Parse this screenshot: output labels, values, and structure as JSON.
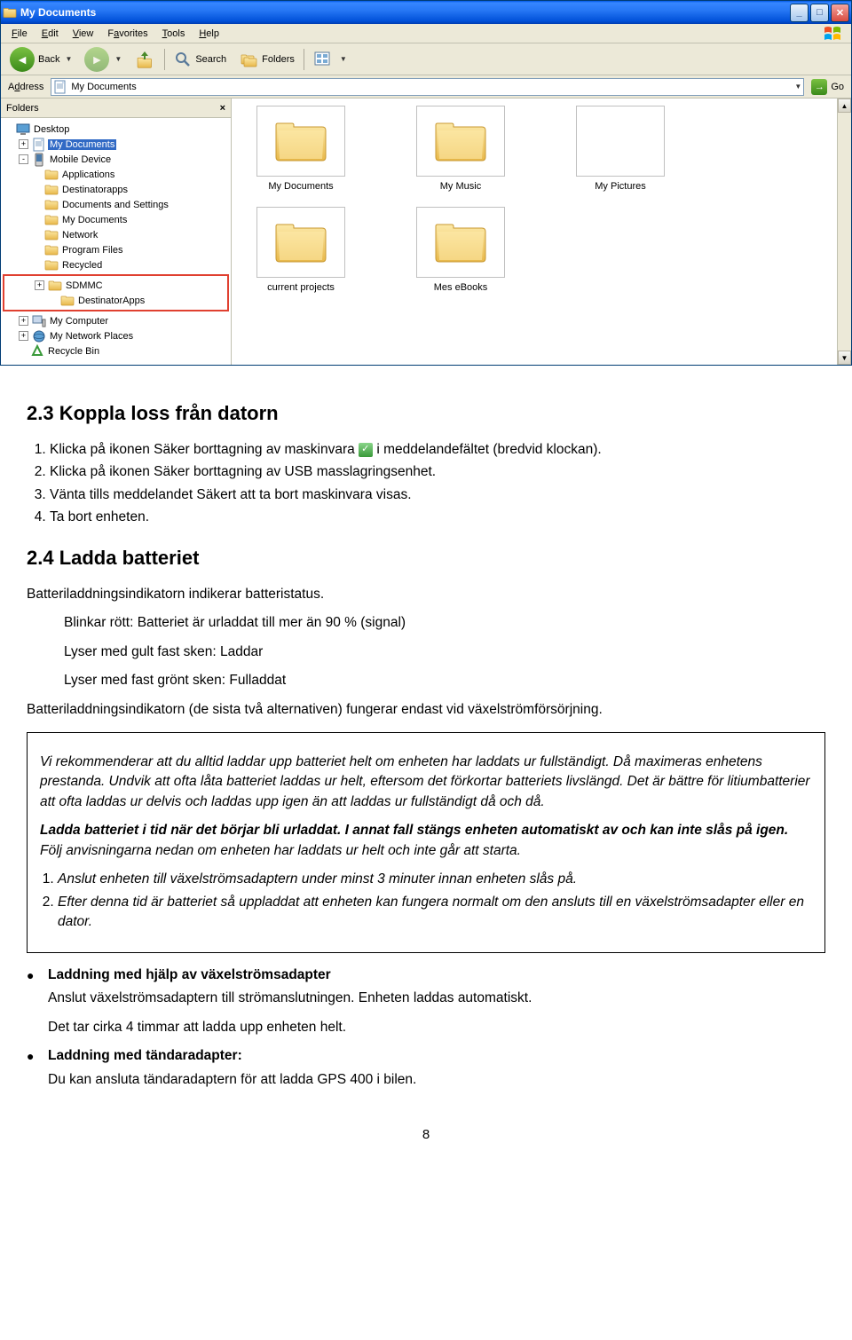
{
  "window": {
    "title": "My Documents",
    "menu": [
      "File",
      "Edit",
      "View",
      "Favorites",
      "Tools",
      "Help"
    ],
    "menu_accel": [
      "F",
      "E",
      "V",
      "a",
      "T",
      "H"
    ],
    "toolbar": {
      "back": "Back",
      "search": "Search",
      "folders": "Folders"
    },
    "address": {
      "label": "Address",
      "value": "My Documents",
      "go": "Go"
    },
    "folders_panel": {
      "header": "Folders",
      "tree": [
        {
          "depth": 0,
          "exp": "",
          "icon": "desktop",
          "label": "Desktop"
        },
        {
          "depth": 1,
          "exp": "+",
          "icon": "mydocs",
          "label": "My Documents",
          "selected": true
        },
        {
          "depth": 1,
          "exp": "-",
          "icon": "device",
          "label": "Mobile Device"
        },
        {
          "depth": 2,
          "exp": "",
          "icon": "folder",
          "label": "Applications"
        },
        {
          "depth": 2,
          "exp": "",
          "icon": "folder",
          "label": "Destinatorapps"
        },
        {
          "depth": 2,
          "exp": "",
          "icon": "folder",
          "label": "Documents and Settings"
        },
        {
          "depth": 2,
          "exp": "",
          "icon": "folder",
          "label": "My Documents"
        },
        {
          "depth": 2,
          "exp": "",
          "icon": "folder",
          "label": "Network"
        },
        {
          "depth": 2,
          "exp": "",
          "icon": "folder",
          "label": "Program Files"
        },
        {
          "depth": 2,
          "exp": "",
          "icon": "folder",
          "label": "Recycled"
        },
        {
          "depth": 2,
          "exp": "+",
          "icon": "folder",
          "label": "SDMMC",
          "hl": true
        },
        {
          "depth": 3,
          "exp": "",
          "icon": "folder",
          "label": "DestinatorApps",
          "hl": true
        },
        {
          "depth": 1,
          "exp": "+",
          "icon": "computer",
          "label": "My Computer"
        },
        {
          "depth": 1,
          "exp": "+",
          "icon": "network",
          "label": "My Network Places"
        },
        {
          "depth": 1,
          "exp": "",
          "icon": "recycle",
          "label": "Recycle Bin"
        }
      ]
    },
    "content_items": [
      {
        "name": "My Documents",
        "type": "folder"
      },
      {
        "name": "My Music",
        "type": "folder"
      },
      {
        "name": "My Pictures",
        "type": "pictures"
      },
      {
        "name": "current projects",
        "type": "folder"
      },
      {
        "name": "Mes eBooks",
        "type": "folder"
      }
    ]
  },
  "doc": {
    "h1": "2.3 Koppla loss från datorn",
    "list1": [
      "Klicka på ikonen Säker borttagning av maskinvara",
      " i meddelandefältet (bredvid klockan).",
      "Klicka på ikonen Säker borttagning av USB masslagringsenhet.",
      "Vänta tills meddelandet Säkert att ta bort maskinvara visas.",
      "Ta bort enheten."
    ],
    "h2": "2.4 Ladda batteriet",
    "p_bat1": "Batteriladdningsindikatorn indikerar batteristatus.",
    "bat_list": [
      "Blinkar rött: Batteriet är urladdat till mer än 90 % (signal)",
      "Lyser med gult fast sken: Laddar",
      "Lyser med fast grönt sken: Fulladdat"
    ],
    "p_bat2": "Batteriladdningsindikatorn (de sista två alternativen) fungerar endast vid växelströmförsörjning.",
    "box": {
      "p1": "Vi rekommenderar att du alltid laddar upp batteriet helt om enheten har laddats ur fullständigt. Då maximeras enhetens prestanda. Undvik att ofta låta batteriet laddas ur helt, eftersom det förkortar batteriets livslängd. Det är bättre för litiumbatterier att ofta laddas ur delvis och laddas upp igen än att laddas ur fullständigt då och då.",
      "p2a": "Ladda batteriet i tid när det börjar bli urladdat. I annat fall stängs enheten automatiskt av och kan inte slås på igen.",
      "p2b": " Följ anvisningarna nedan om enheten har laddats ur helt och inte går att starta.",
      "ol": [
        "Anslut enheten till växelströmsadaptern under minst 3 minuter innan enheten slås på.",
        "Efter denna tid är batteriet så uppladdat att enheten kan fungera normalt om den ansluts till en växelströmsadapter eller en dator."
      ]
    },
    "bullets": [
      {
        "head": "Laddning med hjälp av växelströmsadapter",
        "lines": [
          "Anslut växelströmsadaptern till strömanslutningen. Enheten laddas automatiskt.",
          "Det tar cirka 4 timmar att ladda upp enheten helt."
        ]
      },
      {
        "head": "Laddning med tändaradapter:",
        "lines": [
          "Du kan ansluta tändaradaptern för att ladda GPS 400 i bilen."
        ]
      }
    ],
    "page": "8"
  },
  "colors": {
    "titlebar": "#0058e6",
    "xp_bg": "#ece9d8",
    "select": "#316ac5",
    "highlight": "#e04030",
    "folder_base": "#f8d26a",
    "folder_shadow": "#d4a936"
  }
}
